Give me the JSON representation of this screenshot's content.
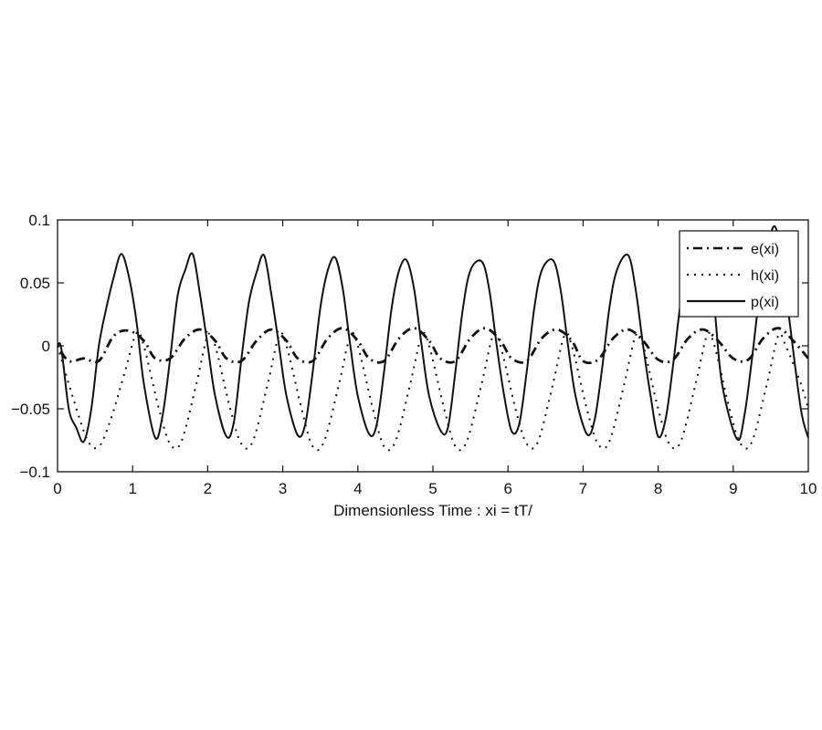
{
  "chart_data": {
    "type": "line",
    "title": "",
    "xlabel": "Dimensionless Time : xi = tT/",
    "ylabel": "",
    "xlim": [
      0,
      10
    ],
    "ylim": [
      -0.1,
      0.1
    ],
    "xticks": [
      "0",
      "1",
      "2",
      "3",
      "4",
      "5",
      "6",
      "7",
      "8",
      "9",
      "10"
    ],
    "yticks": [
      "0.1",
      "0.05",
      "0",
      "−0.05",
      "−0.1"
    ],
    "grid": false,
    "legend_position": "upper right",
    "legend": [
      "e(xi)",
      "h(xi)",
      "p(xi)"
    ],
    "series": [
      {
        "name": "e(xi)",
        "style": "dash-dot",
        "x": [
          0,
          0.15,
          0.35,
          0.55,
          0.75,
          0.95,
          1.15,
          1.3,
          1.5,
          1.7,
          1.9,
          2.1,
          2.25,
          2.45,
          2.65,
          2.85,
          3.05,
          3.2,
          3.4,
          3.6,
          3.8,
          4.0,
          4.15,
          4.35,
          4.55,
          4.75,
          4.95,
          5.1,
          5.3,
          5.5,
          5.7,
          5.9,
          6.05,
          6.25,
          6.45,
          6.65,
          6.85,
          7.0,
          7.2,
          7.4,
          7.6,
          7.8,
          8.0,
          8.2,
          8.4,
          8.6,
          8.8,
          9.0,
          9.2,
          9.4,
          9.6,
          9.8,
          10.0
        ],
        "y": [
          0,
          -0.012,
          -0.01,
          -0.012,
          0.008,
          0.012,
          0.004,
          -0.01,
          -0.01,
          0.006,
          0.013,
          0.004,
          -0.01,
          -0.012,
          0.004,
          0.013,
          0.004,
          -0.01,
          -0.012,
          0.006,
          0.014,
          0.004,
          -0.01,
          -0.012,
          0.006,
          0.014,
          0.004,
          -0.01,
          -0.012,
          0.006,
          0.014,
          0.004,
          -0.01,
          -0.012,
          0.006,
          0.013,
          0.004,
          -0.012,
          -0.011,
          0.006,
          0.013,
          0.004,
          -0.011,
          -0.011,
          0.006,
          0.013,
          0.004,
          -0.01,
          -0.011,
          0.006,
          0.014,
          0.004,
          -0.01
        ]
      },
      {
        "name": "h(xi)",
        "style": "dotted",
        "x": [
          0,
          0.2,
          0.4,
          0.55,
          0.7,
          0.9,
          1.05,
          1.15,
          1.35,
          1.5,
          1.65,
          1.85,
          2.0,
          2.1,
          2.3,
          2.45,
          2.6,
          2.8,
          2.95,
          3.05,
          3.25,
          3.4,
          3.55,
          3.75,
          3.9,
          4.0,
          4.2,
          4.35,
          4.5,
          4.7,
          4.85,
          4.95,
          5.15,
          5.3,
          5.45,
          5.65,
          5.8,
          5.9,
          6.1,
          6.25,
          6.4,
          6.6,
          6.75,
          6.85,
          7.05,
          7.2,
          7.35,
          7.55,
          7.7,
          7.8,
          8.0,
          8.15,
          8.3,
          8.5,
          8.65,
          8.75,
          8.95,
          9.1,
          9.25,
          9.45,
          9.6,
          9.7,
          9.9,
          10.0
        ],
        "y": [
          0,
          -0.04,
          -0.075,
          -0.08,
          -0.06,
          -0.02,
          0.01,
          0.0,
          -0.05,
          -0.078,
          -0.076,
          -0.03,
          0.008,
          0.0,
          -0.05,
          -0.078,
          -0.076,
          -0.03,
          0.008,
          0.0,
          -0.05,
          -0.08,
          -0.076,
          -0.03,
          0.008,
          0.0,
          -0.05,
          -0.08,
          -0.076,
          -0.03,
          0.008,
          0.0,
          -0.05,
          -0.08,
          -0.076,
          -0.03,
          0.008,
          0.0,
          -0.05,
          -0.078,
          -0.076,
          -0.03,
          0.008,
          0.0,
          -0.05,
          -0.078,
          -0.076,
          -0.03,
          0.008,
          0.0,
          -0.05,
          -0.078,
          -0.076,
          -0.03,
          0.008,
          0.0,
          -0.05,
          -0.078,
          -0.076,
          -0.03,
          0.008,
          0.0,
          -0.03,
          -0.05
        ]
      },
      {
        "name": "p(xi)",
        "style": "solid",
        "x": [
          0,
          0.05,
          0.15,
          0.25,
          0.35,
          0.45,
          0.55,
          0.65,
          0.75,
          0.85,
          0.95,
          1.05,
          1.15,
          1.3,
          1.4,
          1.5,
          1.6,
          1.7,
          1.8,
          1.9,
          2.0,
          2.1,
          2.25,
          2.35,
          2.45,
          2.55,
          2.65,
          2.75,
          2.85,
          2.95,
          3.05,
          3.2,
          3.3,
          3.4,
          3.5,
          3.6,
          3.7,
          3.8,
          3.9,
          4.0,
          4.15,
          4.25,
          4.35,
          4.45,
          4.55,
          4.65,
          4.75,
          4.85,
          4.95,
          5.1,
          5.2,
          5.3,
          5.4,
          5.5,
          5.65,
          5.75,
          5.85,
          5.95,
          6.05,
          6.15,
          6.25,
          6.35,
          6.45,
          6.6,
          6.7,
          6.8,
          6.9,
          7.05,
          7.15,
          7.25,
          7.35,
          7.45,
          7.6,
          7.7,
          7.8,
          7.9,
          8.0,
          8.1,
          8.2,
          8.3,
          8.4,
          8.55,
          8.65,
          8.75,
          8.85,
          9.05,
          9.15,
          9.25,
          9.35,
          9.45,
          9.55,
          9.65,
          9.75,
          9.9,
          10.0
        ],
        "y": [
          0,
          -0.002,
          -0.05,
          -0.065,
          -0.076,
          -0.05,
          0.0,
          0.03,
          0.055,
          0.073,
          0.055,
          0.02,
          -0.03,
          -0.073,
          -0.055,
          -0.01,
          0.04,
          0.06,
          0.073,
          0.04,
          0.0,
          -0.04,
          -0.072,
          -0.06,
          -0.01,
          0.035,
          0.058,
          0.072,
          0.04,
          0.0,
          -0.04,
          -0.071,
          -0.062,
          -0.02,
          0.03,
          0.06,
          0.07,
          0.045,
          0.0,
          -0.04,
          -0.07,
          -0.063,
          -0.02,
          0.03,
          0.06,
          0.068,
          0.045,
          0.0,
          -0.04,
          -0.067,
          -0.065,
          -0.02,
          0.03,
          0.06,
          0.067,
          0.045,
          0.0,
          -0.04,
          -0.068,
          -0.062,
          -0.02,
          0.03,
          0.06,
          0.068,
          0.045,
          0.0,
          -0.04,
          -0.07,
          -0.06,
          -0.02,
          0.03,
          0.06,
          0.072,
          0.045,
          0.0,
          -0.04,
          -0.072,
          -0.058,
          -0.015,
          0.035,
          0.07,
          0.09,
          0.07,
          0.03,
          -0.03,
          -0.074,
          -0.055,
          -0.01,
          0.04,
          0.075,
          0.095,
          0.07,
          0.02,
          -0.05,
          -0.073
        ]
      }
    ]
  }
}
